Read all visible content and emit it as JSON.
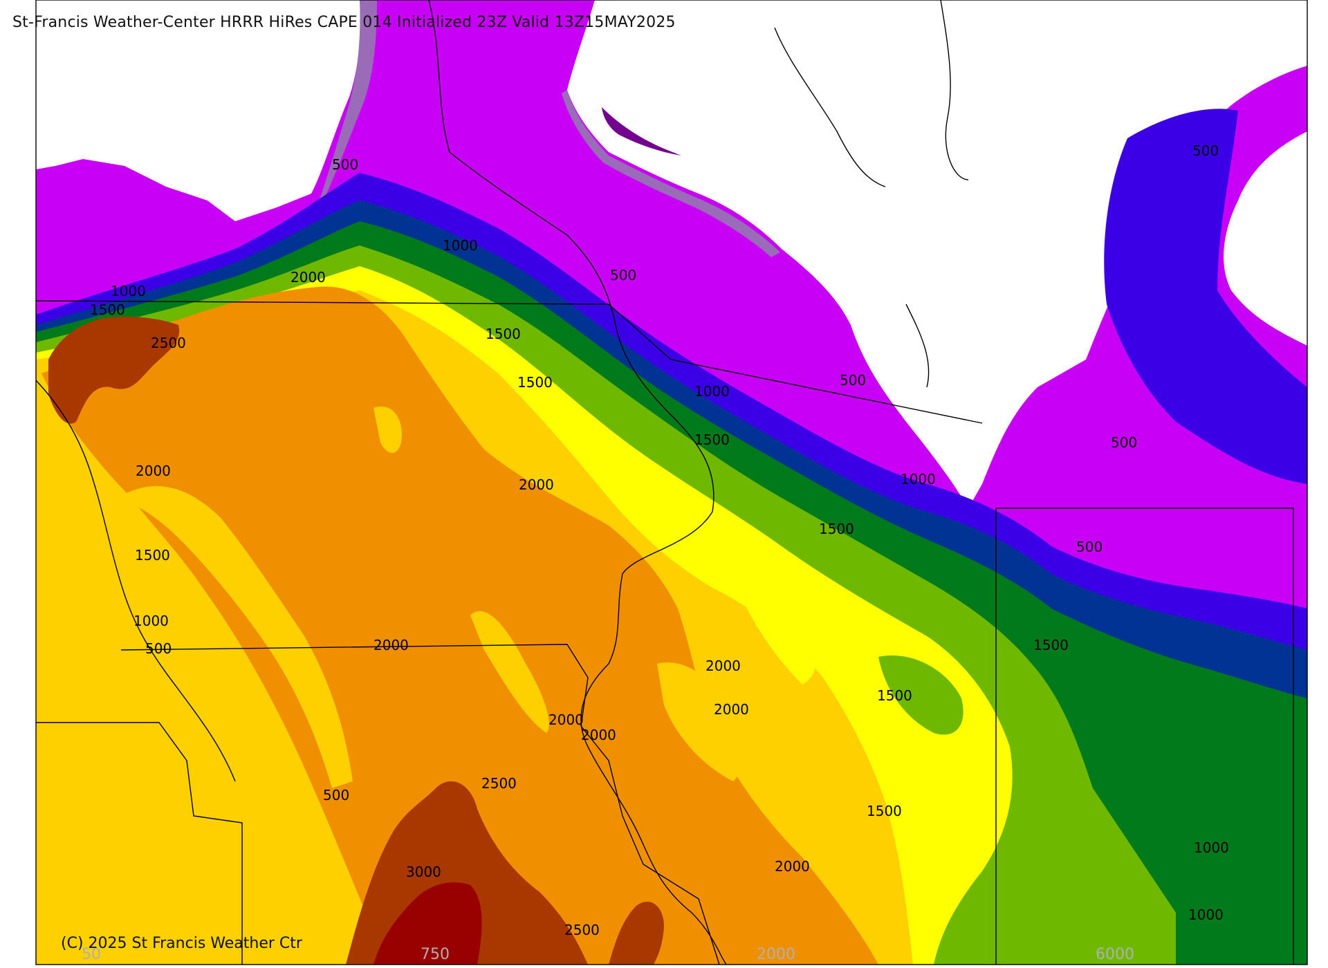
{
  "header": {
    "title": "St-Francis Weather-Center HRRR HiRes CAPE  014 Initialized  23Z Valid 13Z15MAY2025"
  },
  "footer": {
    "copyright": "(C) 2025 St Francis Weather Ctr"
  },
  "colors": {
    "c50": "#9a6cb8",
    "c100": "#74008f",
    "c250": "#a800c2",
    "c500": "#c800f5",
    "c750": "#3b00e6",
    "c1000": "#003394",
    "c1250": "#007a1a",
    "c1500": "#6fb800",
    "c1750": "#ffff00",
    "c2000": "#ffd000",
    "c2500": "#f09000",
    "c3000": "#c06000",
    "c3500": "#a83800",
    "c4000": "#990000",
    "c5000": "#cc0000",
    "c6000": "#808080",
    "land": "#ffffff",
    "lines": "#000000"
  },
  "colorbar": {
    "swatches": [
      "#ffffff",
      "#9a6cb8",
      "#74008f",
      "#a800c2",
      "#c800f5",
      "#3b00e6",
      "#003394",
      "#007a1a",
      "#6fb800",
      "#ffff00",
      "#ffd000",
      "#f09000",
      "#c06000",
      "#a83800",
      "#990000",
      "#cc0000",
      "#c05050",
      "#907070",
      "#88aaaa",
      "#b0e0e8"
    ],
    "labels": [
      "50",
      "750",
      "2000",
      "6000"
    ]
  },
  "contour_labels": [
    "500",
    "1000",
    "1500",
    "2000",
    "2500",
    "3000"
  ]
}
